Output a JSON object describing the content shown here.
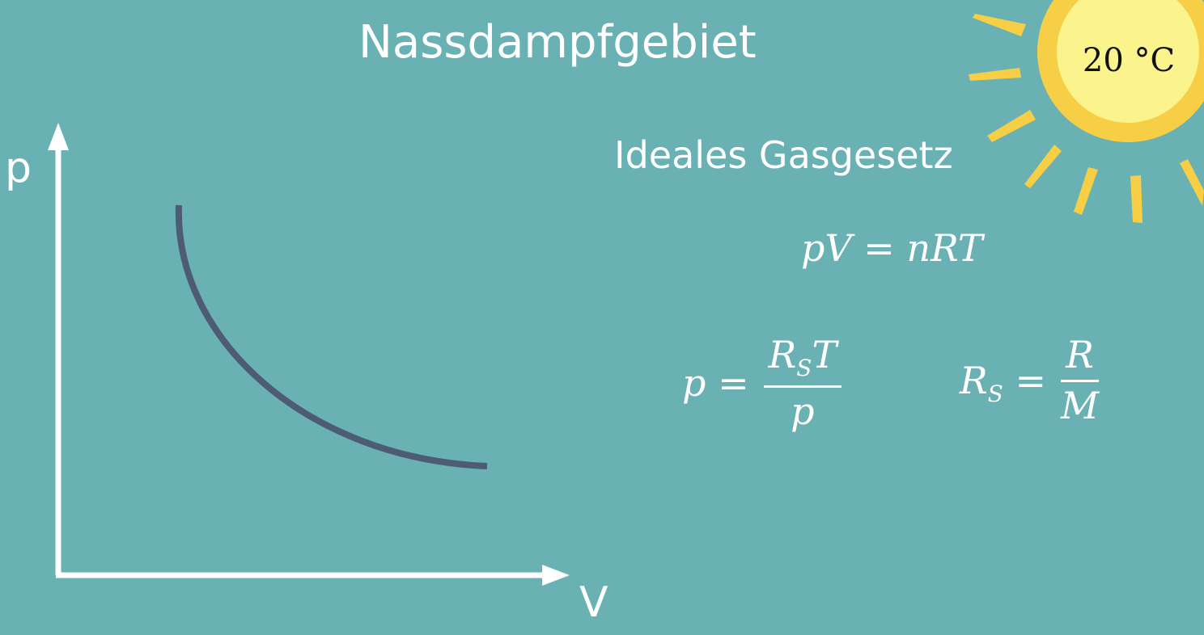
{
  "header": {
    "title": "Nassdampfgebiet"
  },
  "section": {
    "subtitle": "Ideales Gasgesetz"
  },
  "diagram": {
    "y_axis_label": "p",
    "x_axis_label": "V",
    "curve_color": "#4d5b73",
    "axis_color": "#ffffff"
  },
  "equations": {
    "ideal_gas": "pV = nRT",
    "density_lhs": "p =",
    "density_num_main": "R",
    "density_num_sub": "S",
    "density_num_tail": "T",
    "density_den": "p",
    "rs_lhs_main": "R",
    "rs_lhs_sub": "S",
    "rs_eq": " =",
    "rs_num": "R",
    "rs_den": "M"
  },
  "sun": {
    "temperature": "20 °C",
    "icon": "sun-icon",
    "core_color": "#fbf38c",
    "ray_color": "#f7cf47"
  },
  "background_color": "#69b1b3"
}
